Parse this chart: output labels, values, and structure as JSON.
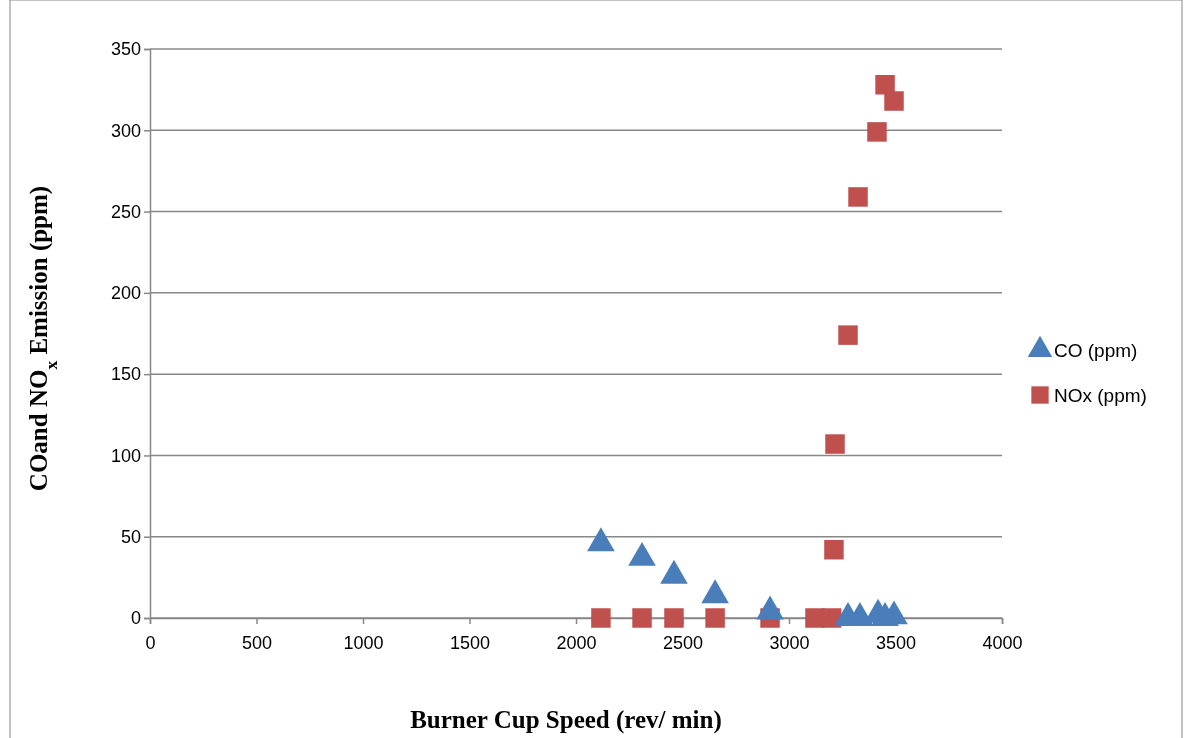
{
  "chart_data": {
    "type": "scatter",
    "xlabel": "Burner Cup Speed (rev/ min)",
    "ylabel": "COand NO$_{x}$ Emission (ppm)",
    "xlim": [
      0,
      4000
    ],
    "xticks": [
      0,
      500,
      1000,
      1500,
      2000,
      2500,
      3000,
      3500,
      4000
    ],
    "ylim": [
      0,
      350
    ],
    "yticks": [
      0,
      50,
      100,
      150,
      200,
      250,
      300,
      350
    ],
    "grid": "y",
    "legend": "right",
    "series": [
      {
        "name": "CO (ppm)",
        "color": "#4a7ebb",
        "marker": "triangle",
        "x": [
          2117,
          2310,
          2460,
          2653,
          2911,
          3277,
          3333,
          3418,
          3451,
          3493
        ],
        "values": [
          46,
          37,
          26,
          14,
          4,
          0,
          0,
          2,
          0,
          1
        ]
      },
      {
        "name": "NOx (ppm)",
        "color": "#c0504d",
        "marker": "square",
        "x": [
          2117,
          2310,
          2460,
          2653,
          2911,
          3122,
          3200,
          3211,
          3216,
          3277,
          3324,
          3413,
          3451,
          3493
        ],
        "values": [
          0,
          0,
          0,
          0,
          0,
          0,
          0,
          42,
          107,
          174,
          259,
          299,
          328,
          318
        ]
      }
    ]
  }
}
